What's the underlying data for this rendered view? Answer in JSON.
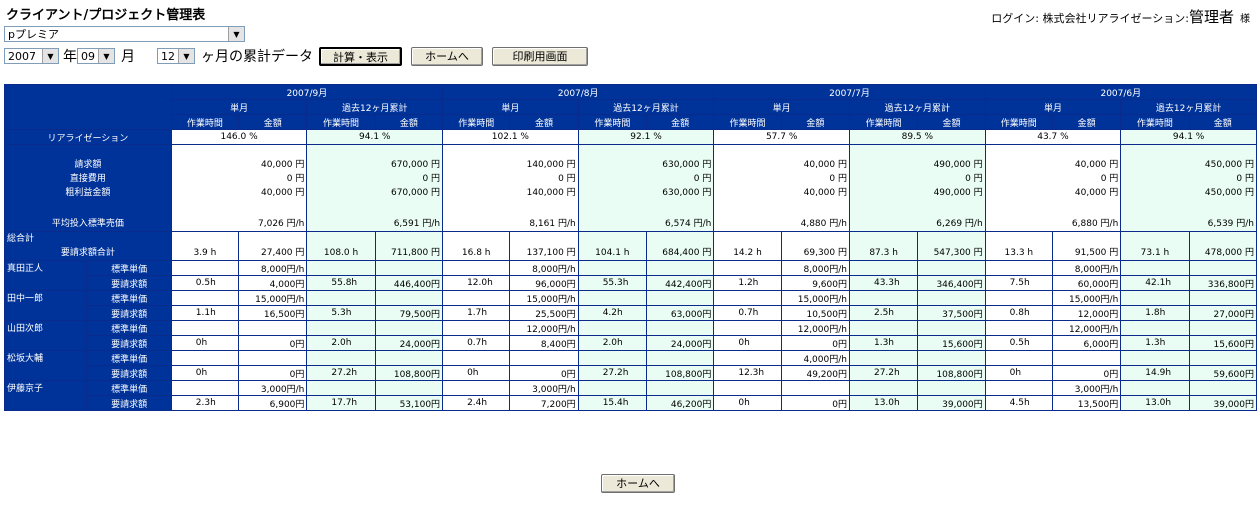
{
  "title": "クライアント/プロジェクト管理表",
  "login": {
    "prefix": "ログイン: 株式会社リアライゼーション:",
    "role": "管理者",
    "suffix": "様"
  },
  "client_select": {
    "value": "pプレミア"
  },
  "controls": {
    "year": "2007",
    "year_label": "年",
    "month": "09",
    "month_label": "月",
    "months": "12",
    "months_label": "ヶ月の累計データ",
    "calc_button": "計算・表示",
    "home_button": "ホームへ",
    "print_button": "印刷用画面"
  },
  "table": {
    "months": [
      "2007/9月",
      "2007/8月",
      "2007/7月",
      "2007/6月"
    ],
    "sub_single": "単月",
    "sub_cumulative": "過去12ヶ月累計",
    "col_hours": "作業時間",
    "col_amount": "金額",
    "realization_label": "リアライゼーション",
    "realization": [
      "146.0 %",
      "94.1 %",
      "102.1 %",
      "92.1 %",
      "57.7 %",
      "89.5 %",
      "43.7 %",
      "94.1 %"
    ],
    "summary_labels": [
      "請求額",
      "直接費用",
      "粗利益金額",
      "平均投入標準売価"
    ],
    "summary": [
      [
        "40,000 円",
        "0 円",
        "40,000 円",
        "7,026 円/h"
      ],
      [
        "670,000 円",
        "0 円",
        "670,000 円",
        "6,591 円/h"
      ],
      [
        "140,000 円",
        "0 円",
        "140,000 円",
        "8,161 円/h"
      ],
      [
        "630,000 円",
        "0 円",
        "630,000 円",
        "6,574 円/h"
      ],
      [
        "40,000 円",
        "0 円",
        "40,000 円",
        "4,880 円/h"
      ],
      [
        "490,000 円",
        "0 円",
        "490,000 円",
        "6,269 円/h"
      ],
      [
        "40,000 円",
        "0 円",
        "40,000 円",
        "6,880 円/h"
      ],
      [
        "450,000 円",
        "0 円",
        "450,000 円",
        "6,539 円/h"
      ]
    ],
    "total_label": "総合計",
    "total_sub_label": "要請求額合計",
    "total": [
      "3.9 h",
      "27,400 円",
      "108.0 h",
      "711,800 円",
      "16.8 h",
      "137,100 円",
      "104.1 h",
      "684,400 円",
      "14.2 h",
      "69,300 円",
      "87.3 h",
      "547,300 円",
      "13.3 h",
      "91,500 円",
      "73.1 h",
      "478,000 円"
    ],
    "rate_label": "標準単価",
    "bill_label": "要請求額",
    "persons": [
      {
        "name": "真田正人",
        "rates": [
          "8,000円/h",
          "8,000円/h",
          "8,000円/h",
          "8,000円/h"
        ],
        "bills": [
          "0.5h",
          "4,000円",
          "55.8h",
          "446,400円",
          "12.0h",
          "96,000円",
          "55.3h",
          "442,400円",
          "1.2h",
          "9,600円",
          "43.3h",
          "346,400円",
          "7.5h",
          "60,000円",
          "42.1h",
          "336,800円"
        ]
      },
      {
        "name": "田中一郎",
        "rates": [
          "15,000円/h",
          "15,000円/h",
          "15,000円/h",
          "15,000円/h"
        ],
        "bills": [
          "1.1h",
          "16,500円",
          "5.3h",
          "79,500円",
          "1.7h",
          "25,500円",
          "4.2h",
          "63,000円",
          "0.7h",
          "10,500円",
          "2.5h",
          "37,500円",
          "0.8h",
          "12,000円",
          "1.8h",
          "27,000円"
        ]
      },
      {
        "name": "山田次郎",
        "rates": [
          "",
          "12,000円/h",
          "12,000円/h",
          "12,000円/h"
        ],
        "bills": [
          "0h",
          "0円",
          "2.0h",
          "24,000円",
          "0.7h",
          "8,400円",
          "2.0h",
          "24,000円",
          "0h",
          "0円",
          "1.3h",
          "15,600円",
          "0.5h",
          "6,000円",
          "1.3h",
          "15,600円"
        ]
      },
      {
        "name": "松坂大輔",
        "rates": [
          "",
          "",
          "4,000円/h",
          ""
        ],
        "bills": [
          "0h",
          "0円",
          "27.2h",
          "108,800円",
          "0h",
          "0円",
          "27.2h",
          "108,800円",
          "12.3h",
          "49,200円",
          "27.2h",
          "108,800円",
          "0h",
          "0円",
          "14.9h",
          "59,600円"
        ]
      },
      {
        "name": "伊藤京子",
        "rates": [
          "3,000円/h",
          "3,000円/h",
          "",
          "3,000円/h"
        ],
        "bills": [
          "2.3h",
          "6,900円",
          "17.7h",
          "53,100円",
          "2.4h",
          "7,200円",
          "15.4h",
          "46,200円",
          "0h",
          "0円",
          "13.0h",
          "39,000円",
          "4.5h",
          "13,500円",
          "13.0h",
          "39,000円"
        ]
      }
    ]
  },
  "footer": {
    "home_button": "ホームへ"
  }
}
